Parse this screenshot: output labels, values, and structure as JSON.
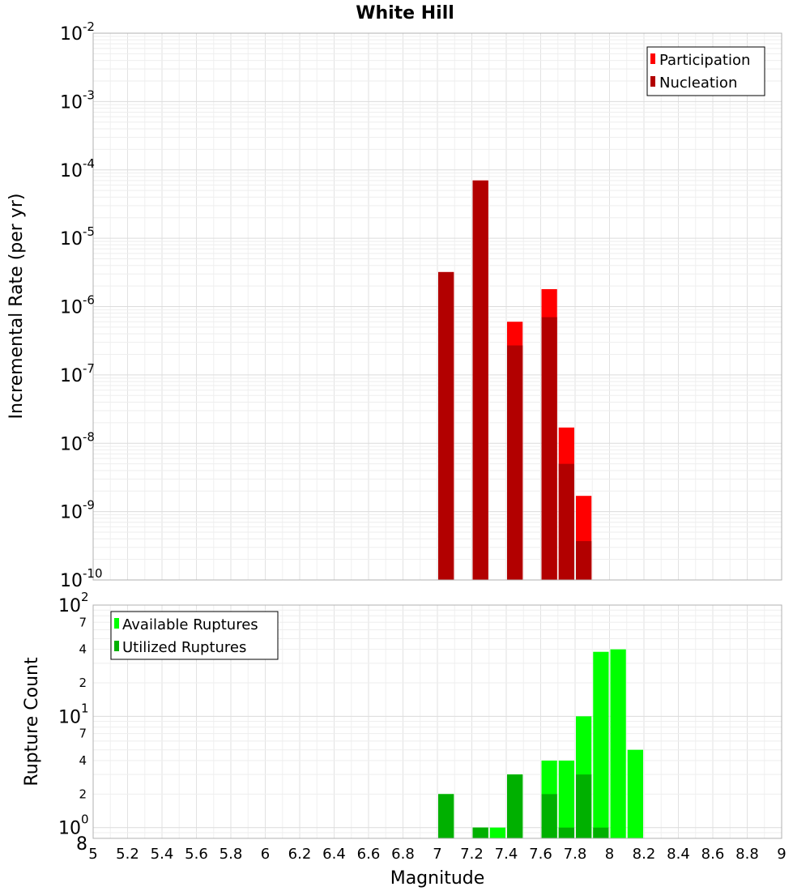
{
  "chart_data": [
    {
      "type": "bar",
      "title": "White Hill",
      "xlabel": "",
      "ylabel": "Incremental Rate (per yr)",
      "yscale": "log",
      "xlim": [
        5,
        9
      ],
      "ylim": [
        1e-10,
        0.01
      ],
      "y_tick_exponents": [
        "-2",
        "-3",
        "-4",
        "-5",
        "-6",
        "-7",
        "-8",
        "-9",
        "-10"
      ],
      "y_tick_base": "10",
      "legend_position": "top-right",
      "x": [
        7.05,
        7.25,
        7.45,
        7.65,
        7.75,
        7.85
      ],
      "series": [
        {
          "name": "Participation",
          "color": "#ff0000",
          "values": [
            3.2e-06,
            7e-05,
            6e-07,
            1.8e-06,
            1.7e-08,
            1.7e-09
          ]
        },
        {
          "name": "Nucleation",
          "color": "#b20000",
          "values": [
            3.2e-06,
            7e-05,
            2.7e-07,
            7e-07,
            5e-09,
            3.7e-10
          ]
        }
      ]
    },
    {
      "type": "bar",
      "title": "",
      "xlabel": "Magnitude",
      "ylabel": "Rupture Count",
      "yscale": "log",
      "xlim": [
        5,
        9
      ],
      "ylim": [
        0.8,
        100
      ],
      "x_ticks": [
        "5",
        "5.2",
        "5.4",
        "5.6",
        "5.8",
        "6",
        "6.2",
        "6.4",
        "6.6",
        "6.8",
        "7",
        "7.2",
        "7.4",
        "7.6",
        "7.8",
        "8",
        "8.2",
        "8.4",
        "8.6",
        "8.8",
        "9"
      ],
      "y_major_ticks": [
        {
          "base": "10",
          "exp": "2",
          "value": 100
        },
        {
          "base": "10",
          "exp": "1",
          "value": 10
        },
        {
          "base": "10",
          "exp": "0",
          "value": 1
        }
      ],
      "y_minor_ticks": [
        {
          "label": "7",
          "value": 70
        },
        {
          "label": "4",
          "value": 40
        },
        {
          "label": "2",
          "value": 20
        },
        {
          "label": "7",
          "value": 7
        },
        {
          "label": "4",
          "value": 4
        },
        {
          "label": "2",
          "value": 2
        },
        {
          "label": "8",
          "value": 0.8
        }
      ],
      "legend_position": "top-left",
      "x": [
        7.05,
        7.25,
        7.35,
        7.45,
        7.65,
        7.75,
        7.85,
        7.95,
        8.05,
        8.15
      ],
      "series": [
        {
          "name": "Available Ruptures",
          "color": "#00ff00",
          "values": [
            2,
            1,
            1,
            3,
            4,
            4,
            10,
            38,
            40,
            5
          ]
        },
        {
          "name": "Utilized Ruptures",
          "color": "#00b000",
          "values": [
            2,
            1,
            0,
            3,
            2,
            1,
            3,
            1,
            0,
            0
          ]
        }
      ]
    }
  ]
}
